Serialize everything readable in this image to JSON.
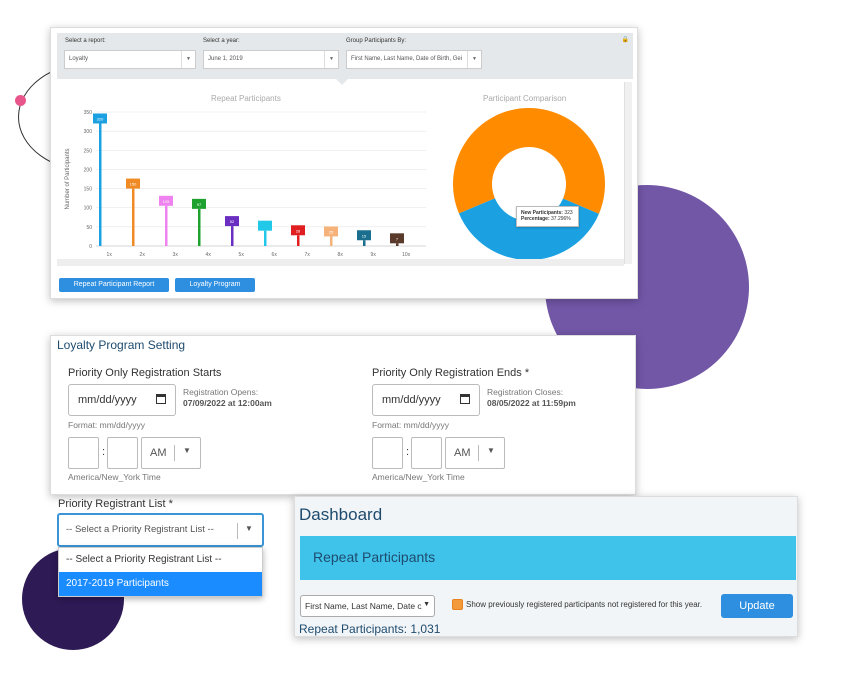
{
  "report_panel": {
    "filters": {
      "report_label": "Select a report:",
      "report_value": "Loyalty",
      "year_label": "Select a year:",
      "year_value": "June 1, 2019",
      "group_label": "Group Participants By:",
      "group_value": "First Name, Last Name, Date of Birth, Gei"
    },
    "bar_chart_title": "Repeat Participants",
    "donut_chart_title": "Participant Comparison",
    "tooltip": {
      "line1_label": "New Participants:",
      "line1_value": "323",
      "line2_label": "Percentage:",
      "line2_value": "37.296%"
    },
    "buttons": {
      "repeat_report": "Repeat Participant Report",
      "loyalty_program": "Loyalty Program"
    }
  },
  "chart_data": [
    {
      "type": "bar",
      "title": "Repeat Participants",
      "ylabel": "Number of Participants",
      "xlabel": "",
      "categories": [
        "1x",
        "2x",
        "3x",
        "4x",
        "5x",
        "6x",
        "7x",
        "8x",
        "9x",
        "10x"
      ],
      "values": [
        320,
        150,
        105,
        97,
        52,
        40,
        28,
        25,
        15,
        7
      ],
      "value_labels": [
        "320",
        "150",
        "105",
        "97",
        "52",
        "",
        "28",
        "25",
        "15",
        "7"
      ],
      "colors": [
        "#1ba1e2",
        "#f08a24",
        "#ee82ee",
        "#1fa12f",
        "#6a2fc0",
        "#22c8e8",
        "#e02020",
        "#f5b27a",
        "#1a6e8e",
        "#5a3a2a"
      ],
      "yticks": [
        0,
        50,
        100,
        150,
        200,
        250,
        300,
        350
      ],
      "ylim": [
        0,
        350
      ],
      "grid": true
    },
    {
      "type": "pie",
      "title": "Participant Comparison",
      "slices": [
        {
          "name": "Repeat Participants",
          "value": 62.704,
          "color": "#ff8c00"
        },
        {
          "name": "New Participants",
          "value": 37.296,
          "color": "#1ba1e2"
        }
      ]
    }
  ],
  "loyalty_settings": {
    "title": "Loyalty Program Setting",
    "start": {
      "heading": "Priority Only Registration Starts",
      "date_placeholder": "mm/dd/yyyy",
      "info_label": "Registration Opens:",
      "info_value": "07/09/2022 at 12:00am",
      "format": "Format: mm/dd/yyyy",
      "ampm": "AM",
      "timezone": "America/New_York Time"
    },
    "end": {
      "heading": "Priority Only Registration Ends *",
      "date_placeholder": "mm/dd/yyyy",
      "info_label": "Registration Closes:",
      "info_value": "08/05/2022 at 11:59pm",
      "format": "Format: mm/dd/yyyy",
      "ampm": "AM",
      "timezone": "America/New_York Time"
    },
    "priority_list": {
      "label": "Priority Registrant List *",
      "selected": "-- Select a Priority Registrant List --",
      "options": [
        "-- Select a Priority Registrant List --",
        "2017-2019 Participants"
      ]
    }
  },
  "dashboard": {
    "title": "Dashboard",
    "band_title": "Repeat Participants",
    "group_select": "First Name, Last Name, Date o",
    "checkbox_label": "Show previously registered participants not registered for this year.",
    "update_button": "Update",
    "count_label": "Repeat Participants: 1,031"
  }
}
